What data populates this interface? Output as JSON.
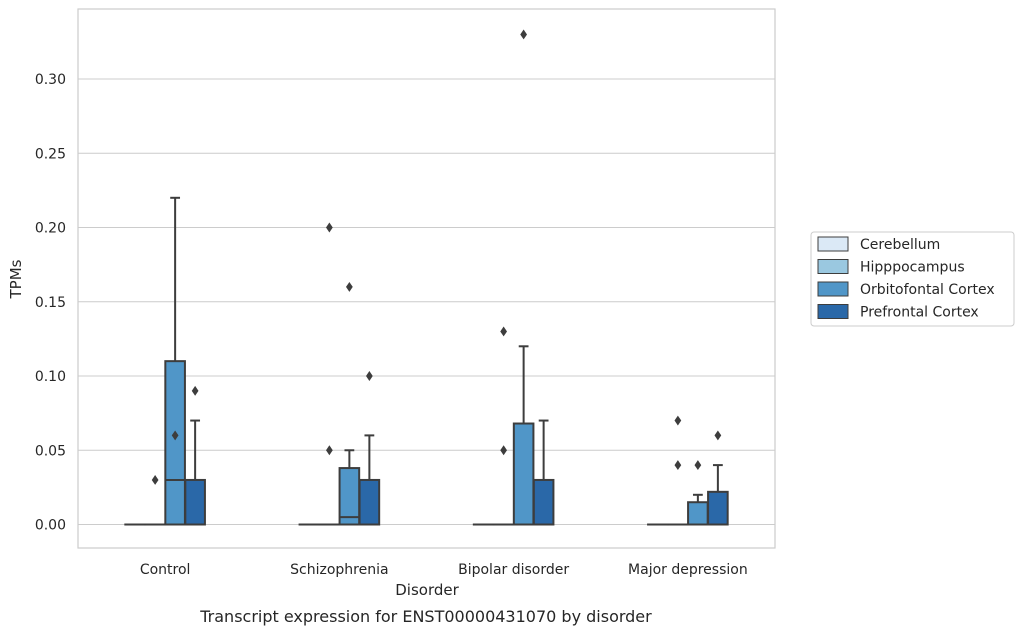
{
  "chart_data": {
    "type": "box",
    "title": "",
    "caption": "Transcript expression for ENST00000431070 by disorder",
    "xlabel": "Disorder",
    "ylabel": "TPMs",
    "ylim": [
      -0.016,
      0.348
    ],
    "yticks": [
      0.0,
      0.05,
      0.1,
      0.15,
      0.2,
      0.25,
      0.3
    ],
    "ytick_labels": [
      "0.00",
      "0.05",
      "0.10",
      "0.15",
      "0.20",
      "0.25",
      "0.30"
    ],
    "grid": "horizontal",
    "legend_position": "right",
    "categories": [
      "Control",
      "Schizophrenia",
      "Bipolar disorder",
      "Major depression"
    ],
    "series": [
      {
        "name": "Cerebellum",
        "color": "#dbe9f6",
        "boxes": [
          {
            "q1": 0,
            "median": 0,
            "q3": 0,
            "whislo": 0,
            "whishi": 0,
            "fliers": []
          },
          {
            "q1": 0,
            "median": 0,
            "q3": 0,
            "whislo": 0,
            "whishi": 0,
            "fliers": []
          },
          {
            "q1": 0,
            "median": 0,
            "q3": 0,
            "whislo": 0,
            "whishi": 0,
            "fliers": []
          },
          {
            "q1": 0,
            "median": 0,
            "q3": 0,
            "whislo": 0,
            "whishi": 0,
            "fliers": []
          }
        ]
      },
      {
        "name": "Hipppocampus",
        "color": "#9ac8e0",
        "boxes": [
          {
            "q1": 0,
            "median": 0,
            "q3": 0,
            "whislo": 0,
            "whishi": 0,
            "fliers": [
              0.03
            ]
          },
          {
            "q1": 0,
            "median": 0,
            "q3": 0,
            "whislo": 0,
            "whishi": 0,
            "fliers": [
              0.05,
              0.2
            ]
          },
          {
            "q1": 0,
            "median": 0,
            "q3": 0,
            "whislo": 0,
            "whishi": 0,
            "fliers": [
              0.05,
              0.13
            ]
          },
          {
            "q1": 0,
            "median": 0,
            "q3": 0,
            "whislo": 0,
            "whishi": 0,
            "fliers": [
              0.04,
              0.07
            ]
          }
        ]
      },
      {
        "name": "Orbitofontal Cortex",
        "color": "#5096c8",
        "boxes": [
          {
            "q1": 0,
            "median": 0.03,
            "q3": 0.11,
            "whislo": 0,
            "whishi": 0.22,
            "fliers": [
              0.06
            ]
          },
          {
            "q1": 0,
            "median": 0.005,
            "q3": 0.038,
            "whislo": 0,
            "whishi": 0.05,
            "fliers": [
              0.16
            ]
          },
          {
            "q1": 0,
            "median": 0,
            "q3": 0.068,
            "whislo": 0,
            "whishi": 0.12,
            "fliers": [
              0.33
            ]
          },
          {
            "q1": 0,
            "median": 0,
            "q3": 0.015,
            "whislo": 0,
            "whishi": 0.02,
            "fliers": [
              0.04
            ]
          }
        ]
      },
      {
        "name": "Prefrontal Cortex",
        "color": "#2a68a8",
        "boxes": [
          {
            "q1": 0,
            "median": 0,
            "q3": 0.03,
            "whislo": 0,
            "whishi": 0.07,
            "fliers": [
              0.09
            ]
          },
          {
            "q1": 0,
            "median": 0,
            "q3": 0.03,
            "whislo": 0,
            "whishi": 0.06,
            "fliers": [
              0.1
            ]
          },
          {
            "q1": 0,
            "median": 0,
            "q3": 0.03,
            "whislo": 0,
            "whishi": 0.07,
            "fliers": []
          },
          {
            "q1": 0,
            "median": 0,
            "q3": 0.022,
            "whislo": 0,
            "whishi": 0.04,
            "fliers": [
              0.06
            ]
          }
        ]
      }
    ]
  }
}
